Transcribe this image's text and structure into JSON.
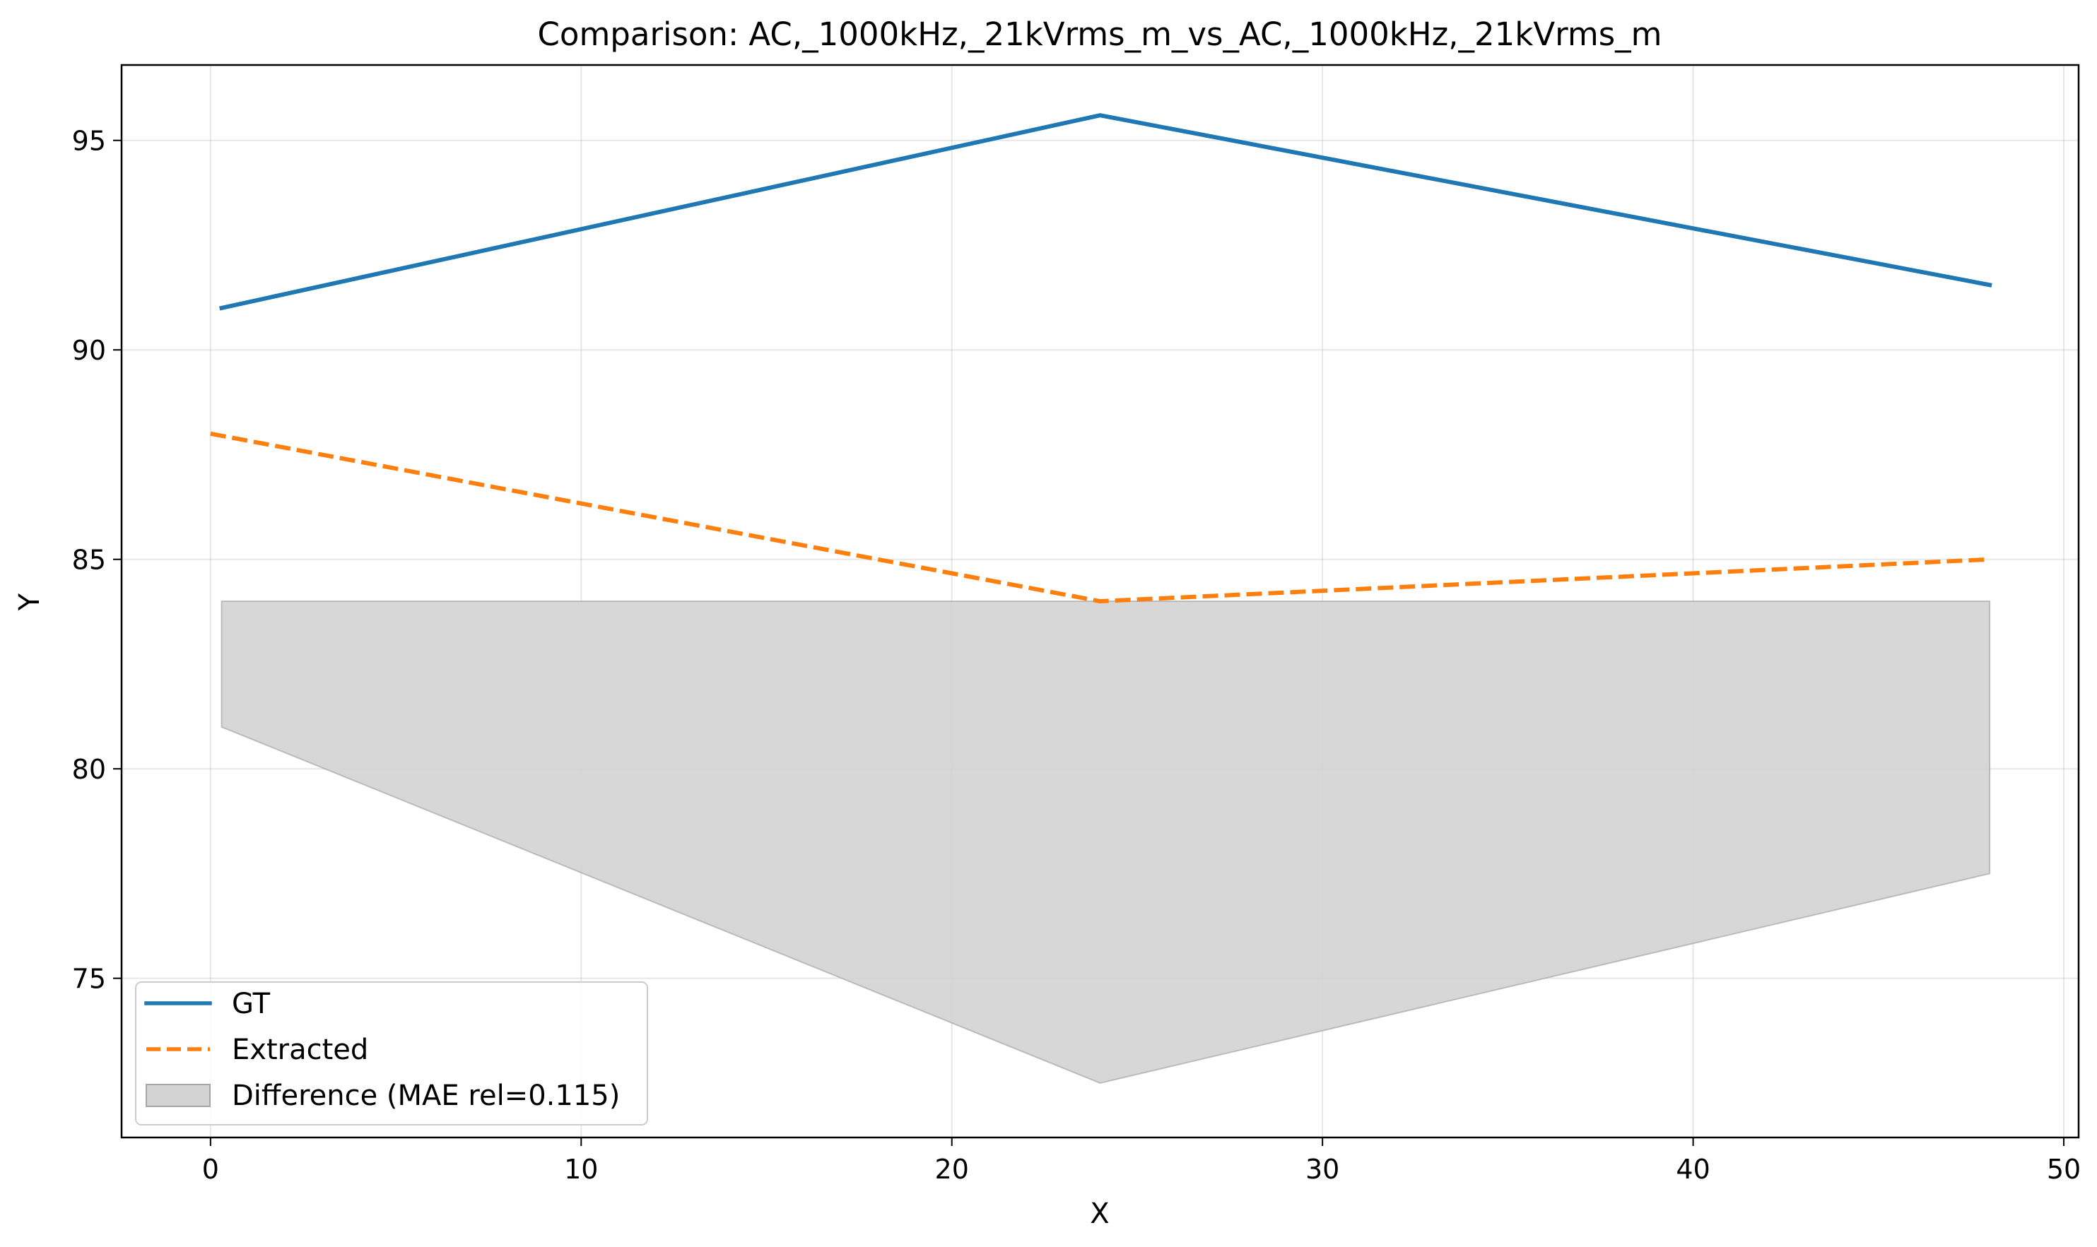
{
  "chart_data": {
    "type": "line",
    "title": "Comparison: AC,_1000kHz,_21kVrms_m_vs_AC,_1000kHz,_21kVrms_m",
    "xlabel": "X",
    "ylabel": "Y",
    "xlim": [
      -2.4,
      50.4
    ],
    "ylim": [
      71.2,
      96.8
    ],
    "xticks": [
      0,
      10,
      20,
      30,
      40,
      50
    ],
    "yticks": [
      75,
      80,
      85,
      90,
      95
    ],
    "grid": true,
    "legend_position": "lower-left",
    "series": [
      {
        "name": "GT",
        "color": "#1f77b4",
        "style": "solid",
        "x": [
          0.3,
          24,
          48
        ],
        "y": [
          91.0,
          95.6,
          91.55
        ]
      },
      {
        "name": "Extracted",
        "color": "#ff7f0e",
        "style": "dashed",
        "x": [
          0,
          24,
          48
        ],
        "y": [
          88.0,
          84.0,
          85.0
        ]
      }
    ],
    "difference_band": {
      "name": "Difference (MAE rel=0.115)",
      "color": "#d3d3d3",
      "x": [
        0.3,
        24,
        48
      ],
      "upper": [
        84.0,
        84.0,
        84.0
      ],
      "lower": [
        81.0,
        72.5,
        77.5
      ]
    }
  }
}
